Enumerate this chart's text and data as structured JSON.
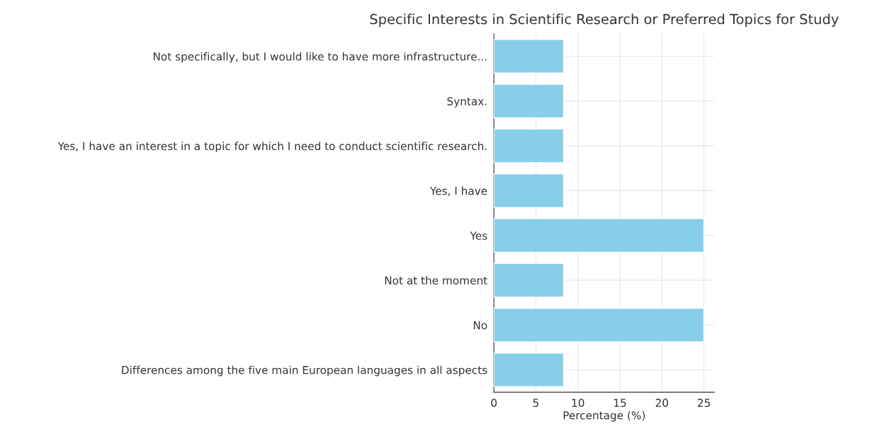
{
  "chart_data": {
    "type": "bar",
    "orientation": "horizontal",
    "title": "Specific Interests in Scientific Research or Preferred Topics for Study",
    "xlabel": "Percentage (%)",
    "categories": [
      "Not specifically, but I would like to have more infrastructure...",
      "Syntax.",
      "Yes, I have an interest in a topic for which I need to conduct scientific research.",
      "Yes, I have",
      "Yes",
      "Not at the moment",
      "No",
      "Differences among the five main European languages in all aspects"
    ],
    "values": [
      8.3,
      8.3,
      8.3,
      8.3,
      25,
      8.3,
      25,
      8.3
    ],
    "color": "#87ceeb",
    "xlim": [
      0,
      26.25
    ],
    "xticks": [
      0,
      5,
      10,
      15,
      20,
      25
    ],
    "grid": true
  }
}
